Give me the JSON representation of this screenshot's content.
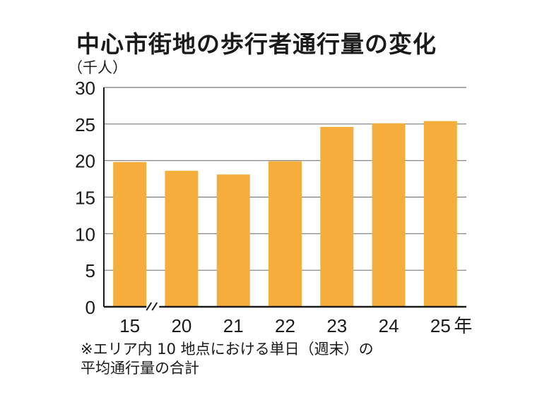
{
  "chart_data": {
    "type": "bar",
    "title": "中心市街地の歩行者通行量の変化",
    "ylabel": "（千人）",
    "categories": [
      "15",
      "20",
      "21",
      "22",
      "23",
      "24",
      "25"
    ],
    "x_unit_suffix": "年",
    "values": [
      19.8,
      18.6,
      18.1,
      19.9,
      24.6,
      25.1,
      25.4
    ],
    "ylim": [
      0,
      30
    ],
    "yticks": [
      0,
      5,
      10,
      15,
      20,
      25,
      30
    ],
    "grid": true,
    "axis_break_after_first": true,
    "colors": {
      "bar": "#F5AE3B",
      "grid": "#7a7a7a",
      "axis": "#1a1a1a"
    }
  },
  "note": {
    "line1": "※エリア内 10 地点における単日（週末）の",
    "line2": "平均通行量の合計"
  }
}
